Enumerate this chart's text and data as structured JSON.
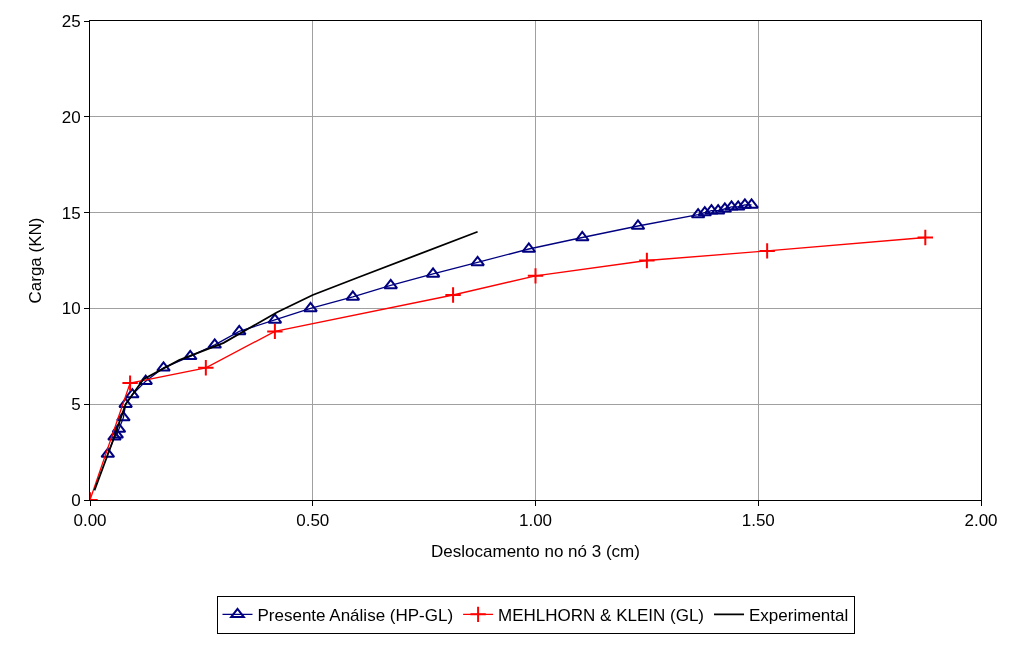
{
  "chart_data": {
    "type": "line",
    "xlabel": "Deslocamento no nó 3 (cm)",
    "ylabel": "Carga (KN)",
    "xlim": [
      0,
      2
    ],
    "ylim": [
      0,
      25
    ],
    "xticks": [
      {
        "value": 0,
        "label": "0.00"
      },
      {
        "value": 0.5,
        "label": "0.50"
      },
      {
        "value": 1,
        "label": "1.00"
      },
      {
        "value": 1.5,
        "label": "1.50"
      },
      {
        "value": 2,
        "label": "2.00"
      }
    ],
    "yticks": [
      0,
      5,
      10,
      15,
      20,
      25
    ],
    "grid": true,
    "legend": "bottom",
    "series": [
      {
        "name": "Presente Análise (HP-GL)",
        "color": "#000080",
        "marker": "triangle",
        "x": [
          0.04,
          0.055,
          0.06,
          0.065,
          0.075,
          0.08,
          0.095,
          0.125,
          0.165,
          0.225,
          0.28,
          0.335,
          0.415,
          0.495,
          0.59,
          0.675,
          0.77,
          0.87,
          0.985,
          1.105,
          1.23,
          1.365,
          1.38,
          1.395,
          1.41,
          1.425,
          1.44,
          1.455,
          1.47,
          1.485
        ],
        "values": [
          2.4,
          3.3,
          3.4,
          3.7,
          4.3,
          5.0,
          5.5,
          6.2,
          6.9,
          7.5,
          8.1,
          8.8,
          9.4,
          10.0,
          10.6,
          11.2,
          11.8,
          12.4,
          13.1,
          13.7,
          14.3,
          14.9,
          15.0,
          15.1,
          15.1,
          15.2,
          15.3,
          15.3,
          15.4,
          15.4
        ]
      },
      {
        "name": "MEHLHORN & KLEIN (GL)",
        "color": "#ff0000",
        "marker": "cross",
        "x": [
          0,
          0.09,
          0.26,
          0.415,
          0.815,
          1.0,
          1.25,
          1.52,
          1.875
        ],
        "values": [
          0,
          6.1,
          6.9,
          8.8,
          10.7,
          11.7,
          12.5,
          13.0,
          13.7
        ]
      },
      {
        "name": "Experimental",
        "color": "#000000",
        "marker": "none",
        "x": [
          0.01,
          0.05,
          0.08,
          0.12,
          0.2,
          0.3,
          0.42,
          0.5,
          0.6,
          0.87
        ],
        "values": [
          0.5,
          3.0,
          5.0,
          6.3,
          7.3,
          8.2,
          9.8,
          10.7,
          11.6,
          14.0
        ]
      }
    ]
  }
}
